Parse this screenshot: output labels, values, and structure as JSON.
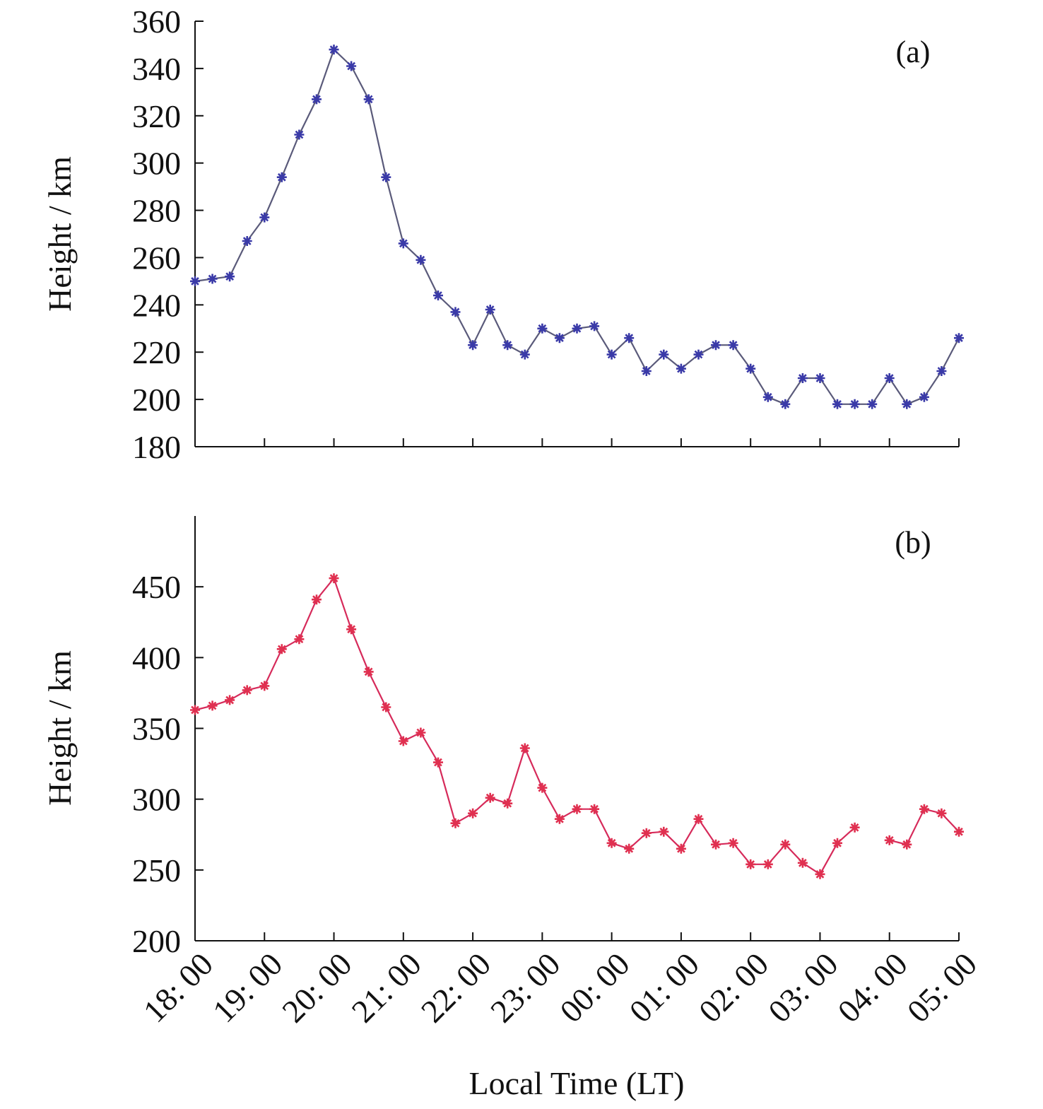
{
  "chart_data": [
    {
      "type": "line",
      "panel_label": "(a)",
      "ylabel": "Height / km",
      "xlabel": "",
      "ylim": [
        180,
        360
      ],
      "yticks": [
        180,
        200,
        220,
        240,
        260,
        280,
        300,
        320,
        340,
        360
      ],
      "xlim": [
        18,
        29
      ],
      "xticks": [
        18,
        19,
        20,
        21,
        22,
        23,
        24,
        25,
        26,
        27,
        28,
        29
      ],
      "xtick_labels": [],
      "marker_color": "#3a3aa8",
      "line_color": "#5a5a7a",
      "series": [
        {
          "x": [
            18,
            18.25,
            18.5,
            18.75,
            19,
            19.25,
            19.5,
            19.75,
            20,
            20.25,
            20.5,
            20.75,
            21,
            21.25,
            21.5,
            21.75,
            22,
            22.25,
            22.5,
            22.75,
            23,
            23.25,
            23.5,
            23.75,
            24,
            24.25,
            24.5,
            24.75,
            25,
            25.25,
            25.5,
            25.75,
            26,
            26.25,
            26.5,
            26.75,
            27,
            27.25,
            27.5,
            27.75,
            28,
            28.25,
            28.5,
            28.75,
            29
          ],
          "y": [
            250,
            251,
            252,
            267,
            277,
            294,
            312,
            327,
            348,
            341,
            327,
            294,
            266,
            259,
            244,
            237,
            223,
            238,
            223,
            219,
            230,
            226,
            230,
            231,
            219,
            226,
            212,
            219,
            213,
            219,
            223,
            223,
            213,
            201,
            198,
            209,
            209,
            198,
            198,
            198,
            209,
            198,
            201,
            212,
            226
          ]
        }
      ]
    },
    {
      "type": "line",
      "panel_label": "(b)",
      "ylabel": "Height / km",
      "xlabel": "Local Time (LT)",
      "ylim": [
        200,
        500
      ],
      "yticks": [
        200,
        250,
        300,
        350,
        400,
        450
      ],
      "xlim": [
        18,
        29
      ],
      "xticks": [
        18,
        19,
        20,
        21,
        22,
        23,
        24,
        25,
        26,
        27,
        28,
        29
      ],
      "xtick_labels": [
        "18: 00",
        "19: 00",
        "20: 00",
        "21: 00",
        "22: 00",
        "23: 00",
        "00: 00",
        "01: 00",
        "02: 00",
        "03: 00",
        "04: 00",
        "05: 00"
      ],
      "marker_color": "#e03050",
      "line_color": "#d62a5a",
      "series": [
        {
          "x": [
            18,
            18.25,
            18.5,
            18.75,
            19,
            19.25,
            19.5,
            19.75,
            20,
            20.25,
            20.5,
            20.75,
            21,
            21.25,
            21.5,
            21.75,
            22,
            22.25,
            22.5,
            22.75,
            23,
            23.25,
            23.5,
            23.75,
            24,
            24.25,
            24.5,
            24.75,
            25,
            25.25,
            25.5,
            25.75,
            26,
            26.25,
            26.5,
            26.75,
            27,
            27.25,
            27.5,
            27.75,
            28,
            28.25,
            28.5,
            28.75,
            29
          ],
          "y": [
            363,
            366,
            370,
            377,
            380,
            406,
            413,
            441,
            456,
            420,
            390,
            365,
            341,
            347,
            326,
            283,
            290,
            301,
            297,
            336,
            308,
            286,
            293,
            293,
            269,
            265,
            276,
            277,
            265,
            286,
            268,
            269,
            254,
            254,
            268,
            255,
            247,
            269,
            280,
            null,
            271,
            268,
            293,
            290,
            277
          ]
        }
      ]
    }
  ]
}
